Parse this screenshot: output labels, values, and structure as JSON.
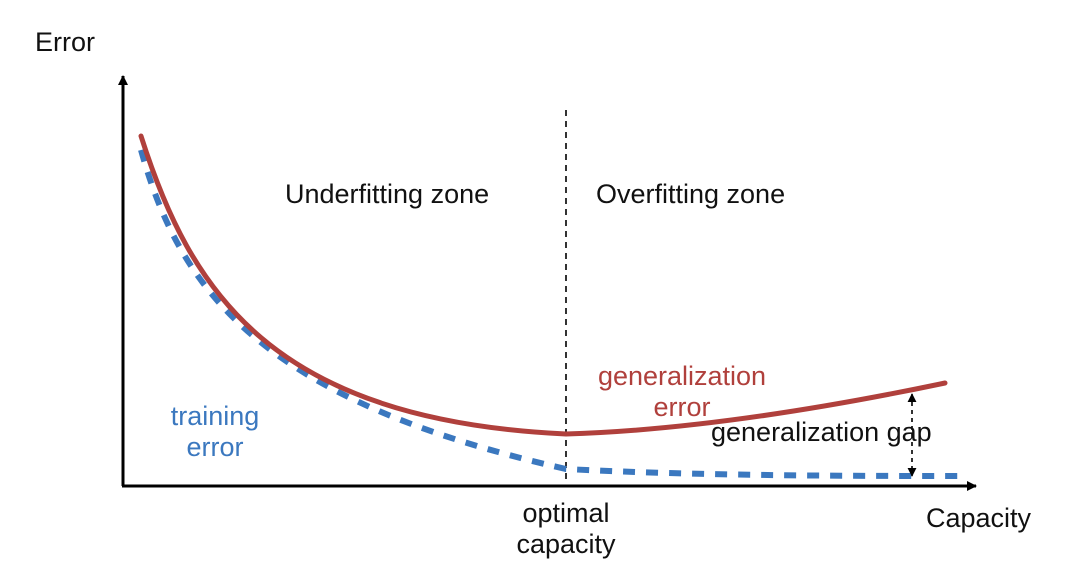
{
  "axes": {
    "y_label": "Error",
    "x_label": "Capacity"
  },
  "zones": {
    "left": "Underfitting zone",
    "right": "Overfitting zone"
  },
  "optimal": {
    "line1": "optimal",
    "line2": "capacity"
  },
  "curves": {
    "training": {
      "line1": "training",
      "line2": "error",
      "color": "#3b78bf",
      "style": "dashed"
    },
    "generalization": {
      "line1": "generalization",
      "line2": "error",
      "color": "#b0403c",
      "style": "solid"
    }
  },
  "gap_label": "generalization gap"
}
